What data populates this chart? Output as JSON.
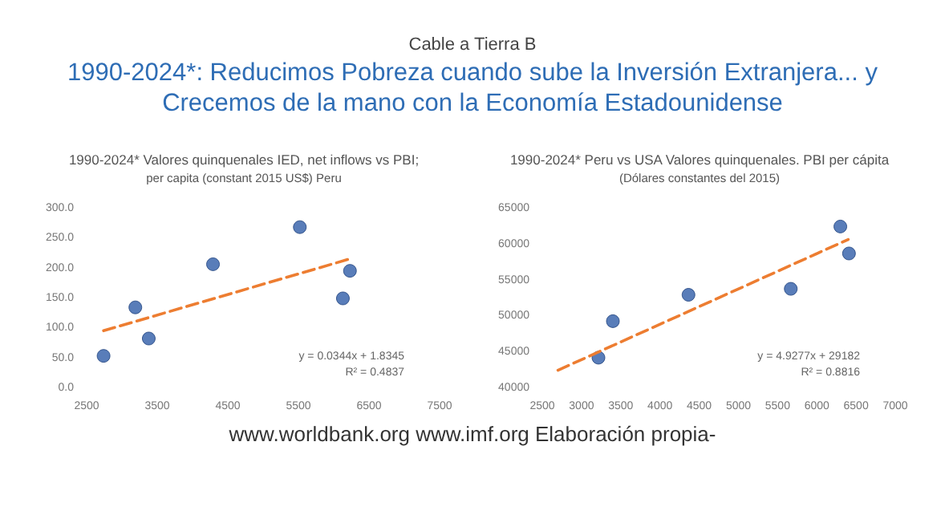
{
  "chart_data": [
    {
      "type": "other",
      "subtitle": "Cable a Tierra B",
      "title": "1990-2024*: Reducimos Pobreza cuando sube la Inversión Extranjera... y Crecemos de la mano con la Economía Estadounidense",
      "annotations": [
        "www.worldbank.org www.imf.org Elaboración propia-"
      ]
    },
    {
      "type": "scatter",
      "title": "1990-2024* Valores quinquenales IED, net inflows vs PBI;",
      "subtitle": "per capita (constant 2015 US$) Peru",
      "marker": "circle",
      "grid": false,
      "series": [
        {
          "type": "scatter",
          "color": "#2f5ca8",
          "x": [
            2740,
            3190,
            3380,
            4290,
            5520,
            6130,
            6230
          ],
          "values": [
            54,
            135,
            83,
            207,
            269,
            150,
            196
          ]
        },
        {
          "type": "line",
          "color": "#ed7d31",
          "line_style": "dashed",
          "marker": "none",
          "x": [
            2740,
            6230
          ],
          "values": [
            96,
            216
          ]
        }
      ],
      "xlim": [
        2500,
        7500
      ],
      "xticks": [
        2500,
        3500,
        4500,
        5500,
        6500,
        7500
      ],
      "ylim": [
        0,
        300
      ],
      "yticks": [
        {
          "value": 0,
          "label": "0.0"
        },
        {
          "value": 50,
          "label": "50.0"
        },
        {
          "value": 100,
          "label": "100.0"
        },
        {
          "value": 150,
          "label": "150.0"
        },
        {
          "value": 200,
          "label": "200.0"
        },
        {
          "value": 250,
          "label": "250.0"
        },
        {
          "value": 300,
          "label": "300.0"
        }
      ],
      "annotations": [
        "y = 0.0344x + 1.8345",
        "R² = 0.4837"
      ]
    },
    {
      "type": "scatter",
      "title": "1990-2024* Peru vs USA Valores quinquenales. PBI per cápita",
      "subtitle": "(Dólares constantes del 2015)",
      "marker": "circle",
      "grid": false,
      "series": [
        {
          "type": "scatter",
          "color": "#2f5ca8",
          "x": [
            3216,
            3400,
            4364,
            5668,
            6300,
            6410
          ],
          "values": [
            44250,
            49330,
            53000,
            53830,
            62500,
            58750
          ]
        },
        {
          "type": "line",
          "color": "#ed7d31",
          "line_style": "dashed",
          "marker": "none",
          "x": [
            2700,
            6400
          ],
          "values": [
            42500,
            60700
          ]
        }
      ],
      "xlim": [
        2500,
        7000
      ],
      "xticks": [
        2500,
        3000,
        3500,
        4000,
        4500,
        5000,
        5500,
        6000,
        6500,
        7000
      ],
      "ylim": [
        40000,
        65000
      ],
      "yticks": [
        40000,
        45000,
        50000,
        55000,
        60000,
        65000
      ],
      "annotations": [
        "y = 4.9277x + 29182",
        "R² = 0.8816"
      ]
    }
  ]
}
